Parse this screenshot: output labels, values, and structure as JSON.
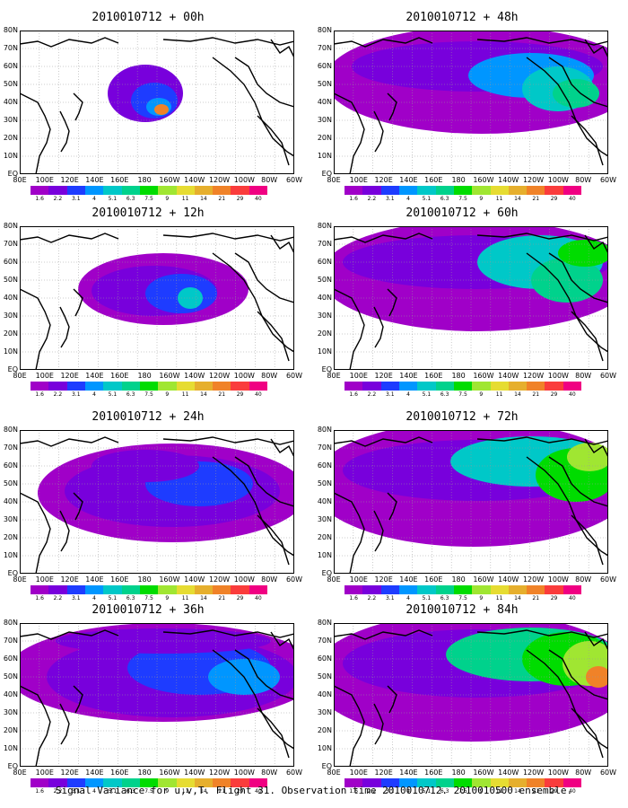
{
  "panels": [
    {
      "title": "2010010712 + 00h",
      "level": 0
    },
    {
      "title": "2010010712 + 12h",
      "level": 1
    },
    {
      "title": "2010010712 + 24h",
      "level": 2
    },
    {
      "title": "2010010712 + 36h",
      "level": 3
    },
    {
      "title": "2010010712 + 48h",
      "level": 4
    },
    {
      "title": "2010010712 + 60h",
      "level": 5
    },
    {
      "title": "2010010712 + 72h",
      "level": 6
    },
    {
      "title": "2010010712 + 84h",
      "level": 7
    }
  ],
  "lat_labels": [
    "80N",
    "70N",
    "60N",
    "50N",
    "40N",
    "30N",
    "20N",
    "10N",
    "EQ"
  ],
  "lon_labels": [
    "80E",
    "100E",
    "120E",
    "140E",
    "160E",
    "180",
    "160W",
    "140W",
    "120W",
    "100W",
    "80W",
    "60W"
  ],
  "colorbar": {
    "labels": [
      "1.6",
      "2.2",
      "3.1",
      "4",
      "5.1",
      "6.3",
      "7.5",
      "9",
      "11",
      "14",
      "21",
      "29",
      "40"
    ],
    "colors": [
      "#a000c8",
      "#7800dc",
      "#1e3cff",
      "#0096ff",
      "#00c8c8",
      "#00d28c",
      "#00dc00",
      "#a0e632",
      "#e6dc32",
      "#e6af2d",
      "#f08228",
      "#fa3c3c",
      "#f00082"
    ]
  },
  "caption": "Signal Variance for u,v,T. Flight 31. Observation time 2010010712. 2010010500 ensemble."
}
